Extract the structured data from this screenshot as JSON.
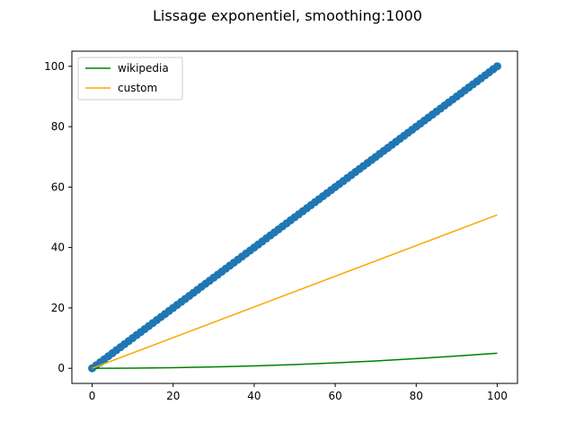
{
  "chart_data": {
    "type": "line",
    "title": "Lissage exponentiel, smoothing:1000",
    "xlabel": "",
    "ylabel": "",
    "xlim": [
      -5,
      105
    ],
    "ylim": [
      -5,
      105
    ],
    "xticks": [
      0,
      20,
      40,
      60,
      80,
      100
    ],
    "yticks": [
      0,
      20,
      40,
      60,
      80,
      100
    ],
    "grid": false,
    "legend_position": "upper-left",
    "raw_points": {
      "name": "",
      "style": "scatter",
      "color": "#1f77b4",
      "x_range": [
        0,
        100
      ],
      "y_equals_x": true,
      "count": 101
    },
    "series": [
      {
        "name": "wikipedia",
        "color": "#008000",
        "x": [
          0,
          10,
          20,
          30,
          40,
          50,
          60,
          70,
          80,
          90,
          100
        ],
        "y": [
          0,
          0.05,
          0.2,
          0.45,
          0.8,
          1.25,
          1.8,
          2.45,
          3.2,
          4.05,
          5.0
        ]
      },
      {
        "name": "custom",
        "color": "#ffa500",
        "x": [
          0,
          100
        ],
        "y": [
          0,
          50.8
        ]
      }
    ]
  }
}
